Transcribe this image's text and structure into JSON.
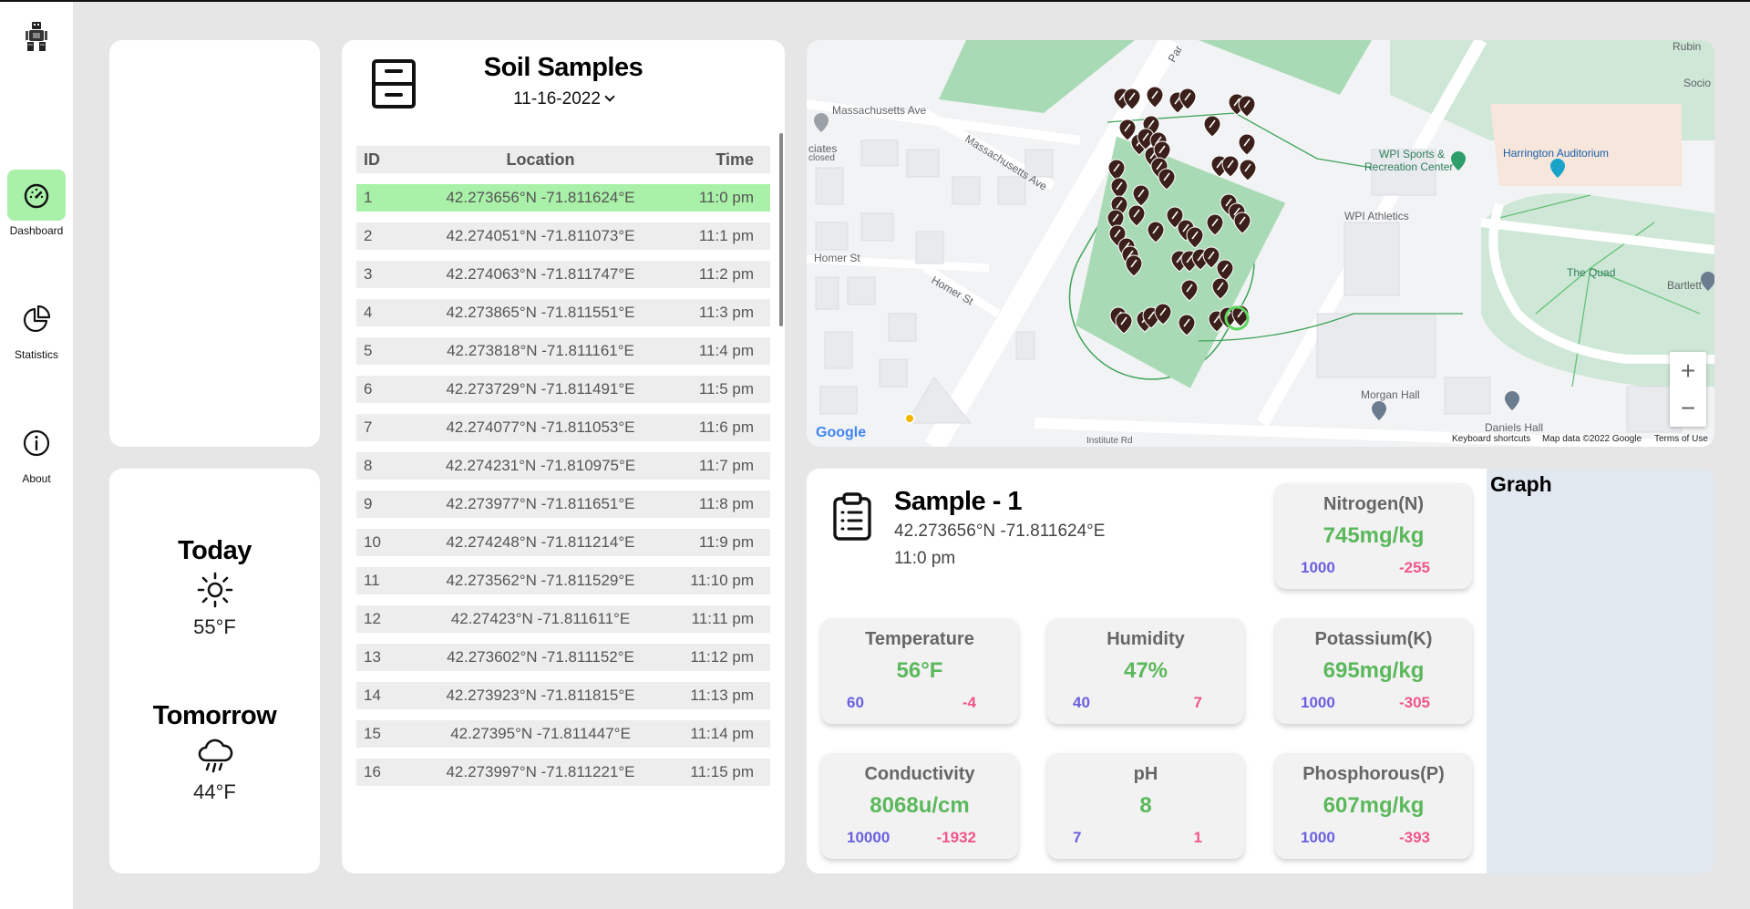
{
  "nav": {
    "items": [
      {
        "label": "Dashboard",
        "icon": "gauge-icon",
        "active": true
      },
      {
        "label": "Statistics",
        "icon": "pie-chart-icon",
        "active": false
      },
      {
        "label": "About",
        "icon": "info-icon",
        "active": false
      }
    ]
  },
  "weather": {
    "today": {
      "label": "Today",
      "temp": "55°F",
      "icon": "sun-icon"
    },
    "tomorrow": {
      "label": "Tomorrow",
      "temp": "44°F",
      "icon": "rain-cloud-icon"
    }
  },
  "samples": {
    "title": "Soil Samples",
    "date": "11-16-2022",
    "columns": {
      "id": "ID",
      "location": "Location",
      "time": "Time"
    },
    "rows": [
      {
        "id": "1",
        "location": "42.273656°N -71.811624°E",
        "time": "11:0 pm",
        "selected": true
      },
      {
        "id": "2",
        "location": "42.274051°N -71.811073°E",
        "time": "11:1 pm"
      },
      {
        "id": "3",
        "location": "42.274063°N -71.811747°E",
        "time": "11:2 pm"
      },
      {
        "id": "4",
        "location": "42.273865°N -71.811551°E",
        "time": "11:3 pm"
      },
      {
        "id": "5",
        "location": "42.273818°N -71.811161°E",
        "time": "11:4 pm"
      },
      {
        "id": "6",
        "location": "42.273729°N -71.811491°E",
        "time": "11:5 pm"
      },
      {
        "id": "7",
        "location": "42.274077°N -71.811053°E",
        "time": "11:6 pm"
      },
      {
        "id": "8",
        "location": "42.274231°N -71.810975°E",
        "time": "11:7 pm"
      },
      {
        "id": "9",
        "location": "42.273977°N -71.811651°E",
        "time": "11:8 pm"
      },
      {
        "id": "10",
        "location": "42.274248°N -71.811214°E",
        "time": "11:9 pm"
      },
      {
        "id": "11",
        "location": "42.273562°N -71.811529°E",
        "time": "11:10 pm"
      },
      {
        "id": "12",
        "location": "42.27423°N -71.811611°E",
        "time": "11:11 pm"
      },
      {
        "id": "13",
        "location": "42.273602°N -71.811152°E",
        "time": "11:12 pm"
      },
      {
        "id": "14",
        "location": "42.273923°N -71.811815°E",
        "time": "11:13 pm"
      },
      {
        "id": "15",
        "location": "42.27395°N -71.811447°E",
        "time": "11:14 pm"
      },
      {
        "id": "16",
        "location": "42.273997°N -71.811221°E",
        "time": "11:15 pm"
      }
    ]
  },
  "map": {
    "labels": {
      "mass_ave_1": "Massachusetts Ave",
      "mass_ave_2": "Massachusetts Ave",
      "homer_st_1": "Homer St",
      "homer_st_2": "Homer St",
      "wpi_sports": "WPI Sports &",
      "wpi_sports_2": "Recreation Center",
      "wpi_athletics": "WPI Athletics",
      "harrington": "Harrington Auditorium",
      "the_quad": "The Quad",
      "morgan_hall": "Morgan Hall",
      "daniels_hall": "Daniels Hall",
      "bartlett": "Bartlett",
      "rubin": "Rubin",
      "socio": "Socio",
      "associates": "ciates",
      "closed": "closed",
      "park": "Par",
      "institute": "Institute Rd"
    },
    "zoom_in": "+",
    "zoom_out": "−",
    "google": "Google",
    "keyboard_shortcuts": "Keyboard shortcuts",
    "map_data": "Map data ©2022 Google",
    "terms": "Terms of Use",
    "colors": {
      "field": "#a8dab5",
      "pin": "#3b1f1a",
      "selected": "#5cd65c"
    }
  },
  "detail": {
    "title": "Sample - 1",
    "location": "42.273656°N -71.811624°E",
    "time": "11:0 pm",
    "graph_label": "Graph",
    "metrics": {
      "nitrogen": {
        "name": "Nitrogen(N)",
        "value": "745mg/kg",
        "ref": "1000",
        "diff": "-255"
      },
      "temperature": {
        "name": "Temperature",
        "value": "56°F",
        "ref": "60",
        "diff": "-4"
      },
      "humidity": {
        "name": "Humidity",
        "value": "47%",
        "ref": "40",
        "diff": "7"
      },
      "potassium": {
        "name": "Potassium(K)",
        "value": "695mg/kg",
        "ref": "1000",
        "diff": "-305"
      },
      "conductivity": {
        "name": "Conductivity",
        "value": "8068u/cm",
        "ref": "10000",
        "diff": "-1932"
      },
      "ph": {
        "name": "pH",
        "value": "8",
        "ref": "7",
        "diff": "1"
      },
      "phosphorous": {
        "name": "Phosphorous(P)",
        "value": "607mg/kg",
        "ref": "1000",
        "diff": "-393"
      }
    }
  }
}
